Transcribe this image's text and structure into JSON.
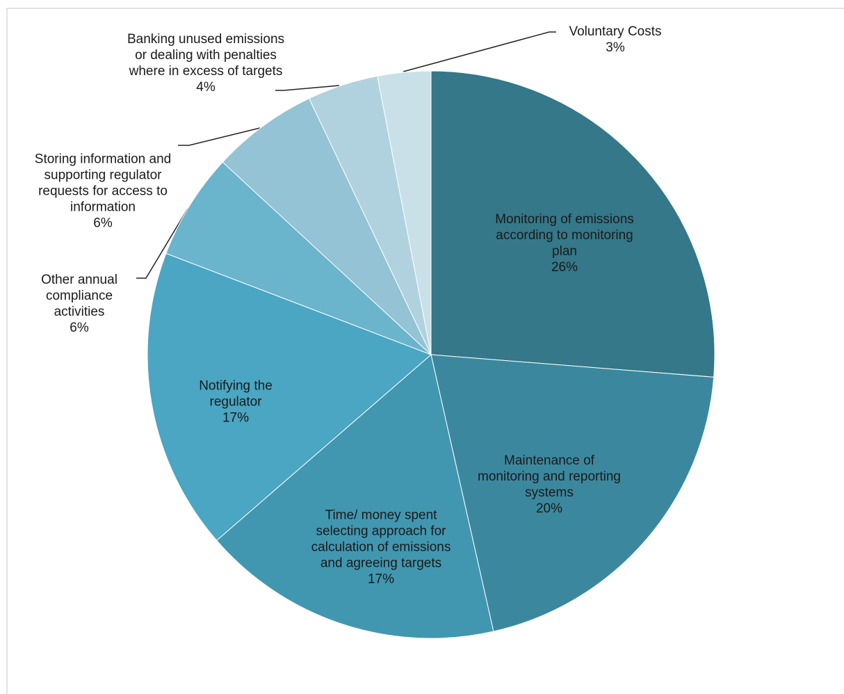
{
  "chart_data": {
    "type": "pie",
    "categories": [
      "Monitoring of emissions according to monitoring plan",
      "Maintenance of monitoring and reporting systems",
      "Time/ money spent selecting approach for calculation of emissions and agreeing targets",
      "Notifying the regulator",
      "Other annual compliance activities",
      "Storing information and supporting regulator requests for access to information",
      "Banking unused emissions or dealing with penalties where in excess of targets",
      "Voluntary Costs"
    ],
    "values": [
      26,
      20,
      17,
      17,
      6,
      6,
      4,
      3
    ],
    "value_labels": [
      "26%",
      "20%",
      "17%",
      "17%",
      "6%",
      "6%",
      "4%",
      "3%"
    ],
    "colors": [
      "#347889",
      "#3b889e",
      "#4197b0",
      "#4aa6c2",
      "#6ab4cc",
      "#93c3d4",
      "#b0d2de",
      "#c9e0e8"
    ]
  }
}
